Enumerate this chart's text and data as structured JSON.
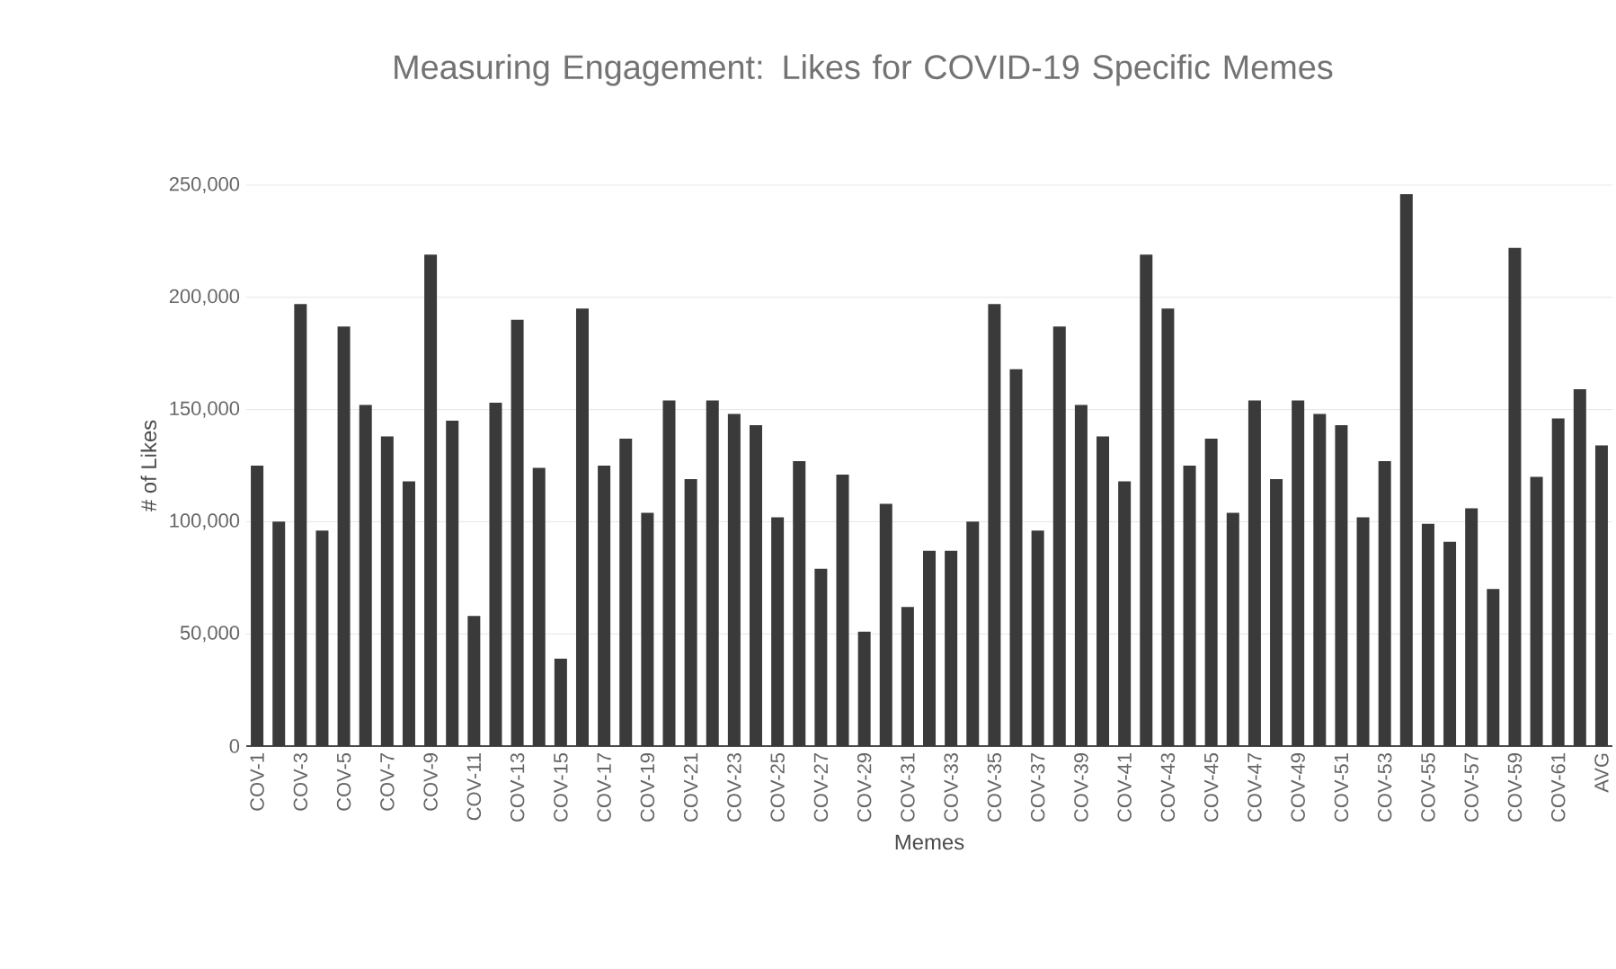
{
  "chart_data": {
    "type": "bar",
    "title": "Measuring Engagement: Likes for COVID-19 Specific Memes",
    "xlabel": "Memes",
    "ylabel": "# of Likes",
    "categories": [
      "COV-1",
      null,
      "COV-3",
      null,
      "COV-5",
      null,
      "COV-7",
      null,
      "COV-9",
      null,
      "COV-11",
      null,
      "COV-13",
      null,
      "COV-15",
      null,
      "COV-17",
      null,
      "COV-19",
      null,
      "COV-21",
      null,
      "COV-23",
      null,
      "COV-25",
      null,
      "COV-27",
      null,
      "COV-29",
      null,
      "COV-31",
      null,
      "COV-33",
      null,
      "COV-35",
      null,
      "COV-37",
      null,
      "COV-39",
      null,
      "COV-41",
      null,
      "COV-43",
      null,
      "COV-45",
      null,
      "COV-47",
      null,
      "COV-49",
      null,
      "COV-51",
      null,
      "COV-53",
      null,
      "COV-55",
      null,
      "COV-57",
      null,
      "COV-59",
      null,
      "COV-61",
      null,
      "AVG"
    ],
    "values": [
      125000,
      100000,
      197000,
      96000,
      187000,
      152000,
      138000,
      118000,
      219000,
      145000,
      58000,
      153000,
      190000,
      124000,
      39000,
      195000,
      125000,
      137000,
      104000,
      154000,
      119000,
      154000,
      148000,
      143000,
      102000,
      127000,
      79000,
      121000,
      51000,
      108000,
      62000,
      87000,
      87000,
      100000,
      197000,
      168000,
      96000,
      187000,
      152000,
      138000,
      118000,
      219000,
      195000,
      125000,
      137000,
      104000,
      154000,
      119000,
      154000,
      148000,
      143000,
      102000,
      127000,
      246000,
      99000,
      91000,
      106000,
      70000,
      222000,
      120000,
      146000,
      159000,
      134000
    ],
    "color": "#3a3a3a",
    "ylim": [
      0,
      250000
    ],
    "yticks": [
      {
        "value": 0,
        "label": "0"
      },
      {
        "value": 50000,
        "label": "50,000"
      },
      {
        "value": 100000,
        "label": "100,000"
      },
      {
        "value": 150000,
        "label": "150,000"
      },
      {
        "value": 200000,
        "label": "200,000"
      },
      {
        "value": 250000,
        "label": "250,000"
      }
    ],
    "grid": "y"
  }
}
